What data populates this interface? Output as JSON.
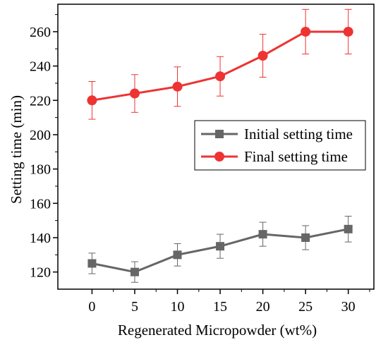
{
  "chart_data": {
    "type": "line",
    "xlabel": "Regenerated Micropowder (wt%)",
    "ylabel": "Setting time (min)",
    "x": [
      0,
      5,
      10,
      15,
      20,
      25,
      30
    ],
    "xlim": [
      -4,
      33
    ],
    "ylim": [
      110,
      276
    ],
    "x_ticks": [
      0,
      5,
      10,
      15,
      20,
      25,
      30
    ],
    "y_ticks": [
      120,
      140,
      160,
      180,
      200,
      220,
      240,
      260
    ],
    "grid": false,
    "legend_position": "center-right",
    "series": [
      {
        "name": "Initial setting time",
        "marker": "square",
        "color": "#666666",
        "values": [
          125,
          120,
          130,
          135,
          142,
          140,
          145
        ],
        "error": [
          6,
          6,
          6.5,
          7,
          7,
          7,
          7.5
        ]
      },
      {
        "name": "Final setting time",
        "marker": "circle",
        "color": "#ee3333",
        "values": [
          220,
          224,
          228,
          234,
          246,
          260,
          260
        ],
        "error": [
          11,
          11,
          11.5,
          11.5,
          12.5,
          13,
          13
        ]
      }
    ]
  }
}
